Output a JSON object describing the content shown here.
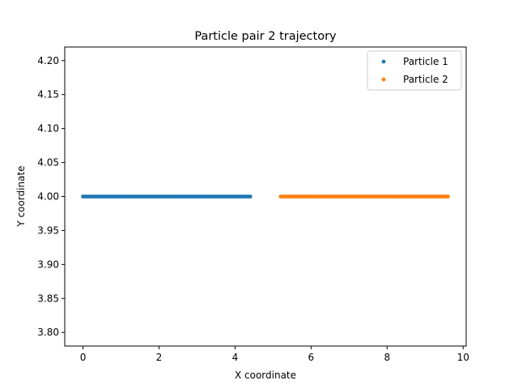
{
  "chart_data": {
    "type": "scatter",
    "title": "Particle pair 2 trajectory",
    "xlabel": "X coordinate",
    "ylabel": "Y coordinate",
    "xlim": [
      -0.48,
      10.08
    ],
    "ylim": [
      3.78,
      4.22
    ],
    "xticks": [
      0,
      2,
      4,
      6,
      8,
      10
    ],
    "yticks": [
      3.8,
      3.85,
      3.9,
      3.95,
      4.0,
      4.05,
      4.1,
      4.15,
      4.2
    ],
    "grid": false,
    "legend_position": "top-right",
    "series": [
      {
        "name": "Particle 1",
        "color": "#1f77b4",
        "marker": "point",
        "x_start": 0.0,
        "x_end": 4.4,
        "n_points": 90,
        "y": 4.0
      },
      {
        "name": "Particle 2",
        "color": "#ff7f0e",
        "marker": "point",
        "x_start": 5.2,
        "x_end": 9.6,
        "n_points": 90,
        "y": 4.0
      }
    ]
  }
}
